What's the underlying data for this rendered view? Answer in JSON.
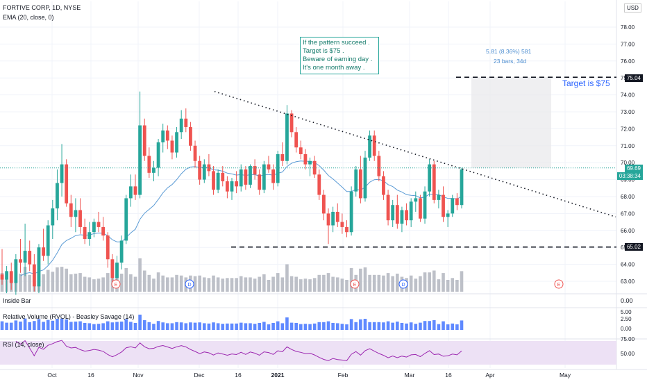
{
  "header": {
    "title": "FORTIVE CORP, 1D, NYSE",
    "indicator": "EMA (20, close, 0)",
    "currency": "USD"
  },
  "annotation": {
    "lines": [
      "If the pattern succeed .",
      "Target is $75 .",
      "Beware of earning day .",
      "It's one month away ."
    ]
  },
  "measure": {
    "change": "5.81 (8.36%) 581",
    "bars": "23 bars, 34d"
  },
  "target_label": "Target is $75",
  "price_tags": {
    "target": "75.04",
    "current": "69.69",
    "countdown": "03:38:34",
    "support": "65.02"
  },
  "panes": {
    "inside_bar": "Inside Bar",
    "inside_bar_value": "0.00",
    "rvol": "Relative Volume (RVOL) - Beasley Savage (14)",
    "rsi": "RSI (14, close)"
  },
  "colors": {
    "up": "#26a69a",
    "down": "#ef5350",
    "ema": "#5b9bd5",
    "volume": "#b2b5be",
    "rvol": "#2962ff",
    "rsi": "#9c27b0",
    "rsi_band": "#ede1f5"
  },
  "chart_data": {
    "type": "candlestick",
    "title": "FORTIVE CORP, 1D, NYSE",
    "x_ticks": [
      "Oct",
      "16",
      "Nov",
      "Dec",
      "16",
      "2021",
      "Feb",
      "Mar",
      "16",
      "Apr",
      "May"
    ],
    "y_ticks": [
      63,
      64,
      65,
      66,
      67,
      68,
      69,
      70,
      71,
      72,
      73,
      74,
      75,
      76,
      77,
      78
    ],
    "ylim": [
      62.6,
      79.2
    ],
    "rvol_ticks": [
      "5.00",
      "2.50",
      "0.00"
    ],
    "rsi_ticks": [
      "75.00",
      "50.00"
    ],
    "candles": [
      [
        63.4,
        64.9,
        62.8,
        63.1
      ],
      [
        63.1,
        63.9,
        62.3,
        63.6
      ],
      [
        63.6,
        64.1,
        62.5,
        62.9
      ],
      [
        62.9,
        64.6,
        62.2,
        64.3
      ],
      [
        64.3,
        65.5,
        63.5,
        64.1
      ],
      [
        64.1,
        66.4,
        63.3,
        64.8
      ],
      [
        64.8,
        65.4,
        63.6,
        64.0
      ],
      [
        64.0,
        64.6,
        62.4,
        62.7
      ],
      [
        62.7,
        65.2,
        62.3,
        65.0
      ],
      [
        65.0,
        66.1,
        64.2,
        64.5
      ],
      [
        64.5,
        66.6,
        64.0,
        66.3
      ],
      [
        66.3,
        67.8,
        65.5,
        67.3
      ],
      [
        67.3,
        69.6,
        66.6,
        68.8
      ],
      [
        68.8,
        71.1,
        68.0,
        69.9
      ],
      [
        69.9,
        70.2,
        67.4,
        67.6
      ],
      [
        67.6,
        68.1,
        66.2,
        66.8
      ],
      [
        66.8,
        67.9,
        65.9,
        67.2
      ],
      [
        67.2,
        67.9,
        65.8,
        66.2
      ],
      [
        66.2,
        66.7,
        65.2,
        65.5
      ],
      [
        65.5,
        66.5,
        65.1,
        65.9
      ],
      [
        65.9,
        66.7,
        65.6,
        66.5
      ],
      [
        66.5,
        67.1,
        65.9,
        66.2
      ],
      [
        66.2,
        66.8,
        65.4,
        65.7
      ],
      [
        65.7,
        65.9,
        63.8,
        64.3
      ],
      [
        64.3,
        64.6,
        62.9,
        63.2
      ],
      [
        63.2,
        64.5,
        62.6,
        64.1
      ],
      [
        64.1,
        65.7,
        63.7,
        65.4
      ],
      [
        65.4,
        68.1,
        65.2,
        67.9
      ],
      [
        67.9,
        69.3,
        67.4,
        68.6
      ],
      [
        68.6,
        69.3,
        67.8,
        68.1
      ],
      [
        68.1,
        74.2,
        67.9,
        72.2
      ],
      [
        72.2,
        72.6,
        70.1,
        70.4
      ],
      [
        70.4,
        70.9,
        69.1,
        69.4
      ],
      [
        69.4,
        70.1,
        68.9,
        69.7
      ],
      [
        69.7,
        71.4,
        69.2,
        71.2
      ],
      [
        71.2,
        72.3,
        70.6,
        71.9
      ],
      [
        71.9,
        72.2,
        70.8,
        71.3
      ],
      [
        71.3,
        71.6,
        70.2,
        70.6
      ],
      [
        70.6,
        72.1,
        70.3,
        71.8
      ],
      [
        71.8,
        73.1,
        71.4,
        72.6
      ],
      [
        72.6,
        73.2,
        71.8,
        72.1
      ],
      [
        72.1,
        72.4,
        70.7,
        71.0
      ],
      [
        71.0,
        71.3,
        69.7,
        70.1
      ],
      [
        70.1,
        70.4,
        68.7,
        69.0
      ],
      [
        69.0,
        70.2,
        68.8,
        69.9
      ],
      [
        69.9,
        70.5,
        69.2,
        69.5
      ],
      [
        69.5,
        69.8,
        68.1,
        68.4
      ],
      [
        68.4,
        69.6,
        68.2,
        69.4
      ],
      [
        69.4,
        69.8,
        68.6,
        68.9
      ],
      [
        68.9,
        69.2,
        67.9,
        68.3
      ],
      [
        68.3,
        69.1,
        67.8,
        68.9
      ],
      [
        68.9,
        69.5,
        68.2,
        68.6
      ],
      [
        68.6,
        69.9,
        68.3,
        69.6
      ],
      [
        69.6,
        69.8,
        68.4,
        68.7
      ],
      [
        68.7,
        69.9,
        68.5,
        69.8
      ],
      [
        69.8,
        70.2,
        69.0,
        69.3
      ],
      [
        69.3,
        69.6,
        68.1,
        68.4
      ],
      [
        68.4,
        70.1,
        68.2,
        69.9
      ],
      [
        69.9,
        70.4,
        69.4,
        69.6
      ],
      [
        69.6,
        69.9,
        68.4,
        68.8
      ],
      [
        68.8,
        70.7,
        68.6,
        70.5
      ],
      [
        70.5,
        71.2,
        69.8,
        70.1
      ],
      [
        70.1,
        73.4,
        69.9,
        72.9
      ],
      [
        72.9,
        73.1,
        71.5,
        71.8
      ],
      [
        71.8,
        72.1,
        70.6,
        70.9
      ],
      [
        70.9,
        71.3,
        70.2,
        70.5
      ],
      [
        70.5,
        70.8,
        69.6,
        69.9
      ],
      [
        69.9,
        70.3,
        69.2,
        70.1
      ],
      [
        70.1,
        70.4,
        69.1,
        69.3
      ],
      [
        69.3,
        69.6,
        67.8,
        68.1
      ],
      [
        68.1,
        68.4,
        66.6,
        67.0
      ],
      [
        67.0,
        67.3,
        65.2,
        66.3
      ],
      [
        66.3,
        67.4,
        65.9,
        67.1
      ],
      [
        67.1,
        67.6,
        66.2,
        66.5
      ],
      [
        66.5,
        67.0,
        65.8,
        66.2
      ],
      [
        66.2,
        66.6,
        65.6,
        65.9
      ],
      [
        65.9,
        68.6,
        65.7,
        68.3
      ],
      [
        68.3,
        69.8,
        68.0,
        69.6
      ],
      [
        69.6,
        70.4,
        67.6,
        67.9
      ],
      [
        67.9,
        70.7,
        67.7,
        70.3
      ],
      [
        70.3,
        71.9,
        70.1,
        71.6
      ],
      [
        71.6,
        71.9,
        70.1,
        70.4
      ],
      [
        70.4,
        70.7,
        68.9,
        69.2
      ],
      [
        69.2,
        69.5,
        67.8,
        68.1
      ],
      [
        68.1,
        68.4,
        66.3,
        66.6
      ],
      [
        66.6,
        67.8,
        66.2,
        67.5
      ],
      [
        67.5,
        68.1,
        66.1,
        66.4
      ],
      [
        66.4,
        67.4,
        65.9,
        67.2
      ],
      [
        67.2,
        67.6,
        66.3,
        66.6
      ],
      [
        66.6,
        67.9,
        66.2,
        67.7
      ],
      [
        67.7,
        68.3,
        67.1,
        67.9
      ],
      [
        67.9,
        68.1,
        66.5,
        66.7
      ],
      [
        66.7,
        68.6,
        66.4,
        68.3
      ],
      [
        68.3,
        70.2,
        68.0,
        69.9
      ],
      [
        69.9,
        70.1,
        67.6,
        67.8
      ],
      [
        67.8,
        68.4,
        67.3,
        68.1
      ],
      [
        68.1,
        68.6,
        66.5,
        66.8
      ],
      [
        66.8,
        67.2,
        66.2,
        67.0
      ],
      [
        67.0,
        68.1,
        66.8,
        67.9
      ],
      [
        67.9,
        68.2,
        67.2,
        67.5
      ],
      [
        67.5,
        69.7,
        67.3,
        69.6
      ]
    ],
    "support_level": 65.02,
    "target_level": 75.04,
    "last_price": 69.69
  }
}
